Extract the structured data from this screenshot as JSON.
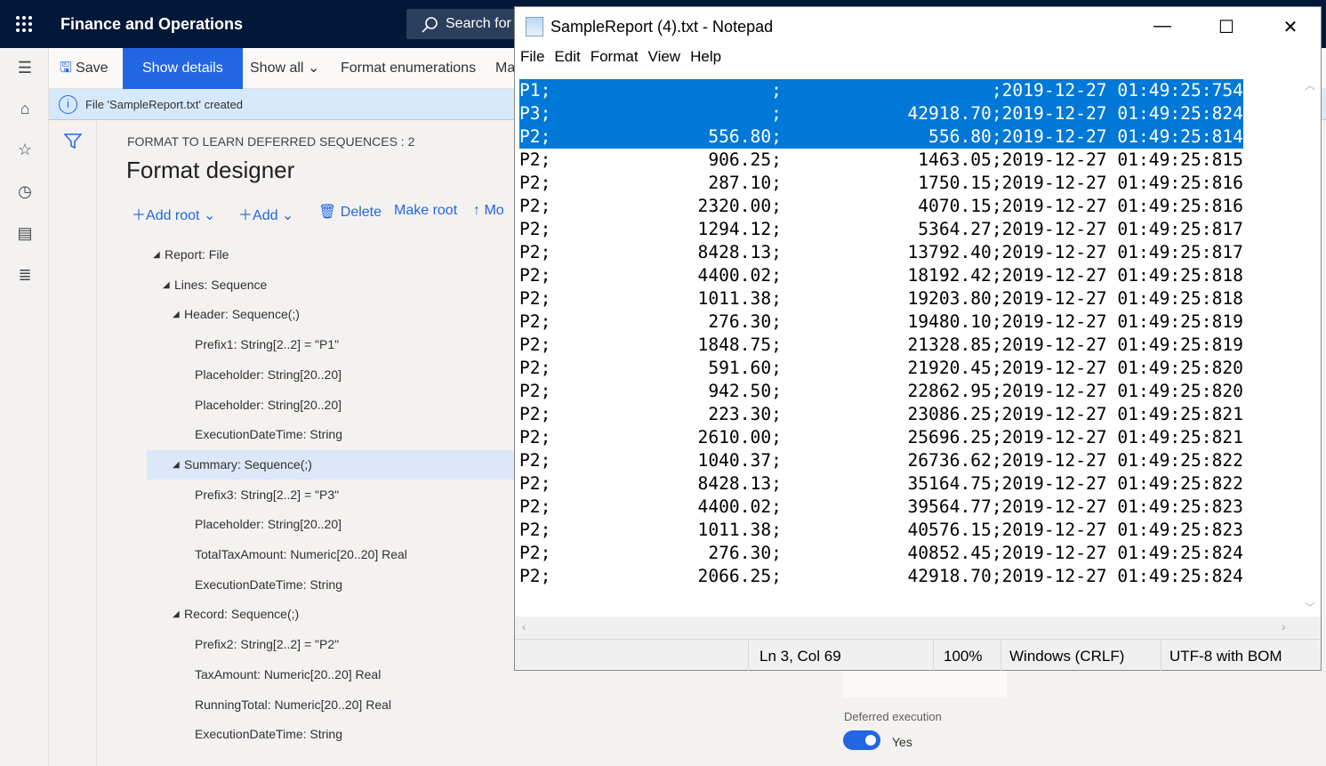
{
  "app": {
    "title": "Finance and Operations",
    "search_placeholder": "Search for"
  },
  "toolbar": {
    "save": "Save",
    "show_details": "Show details",
    "show_all": "Show all",
    "format_enumerations": "Format enumerations",
    "more": "Ma"
  },
  "info": {
    "message": "File 'SampleReport.txt' created"
  },
  "page": {
    "caption": "FORMAT TO LEARN DEFERRED SEQUENCES : 2",
    "title": "Format designer"
  },
  "actions": {
    "add_root": "Add root",
    "add": "Add",
    "delete": "Delete",
    "make_root": "Make root",
    "move": "Mo"
  },
  "tree": [
    {
      "label": "Report: File",
      "level": 0,
      "expanded": true
    },
    {
      "label": "Lines: Sequence",
      "level": 1,
      "expanded": true
    },
    {
      "label": "Header: Sequence(;)",
      "level": 2,
      "expanded": true
    },
    {
      "label": "Prefix1: String[2..2] = \"P1\"",
      "level": 3
    },
    {
      "label": "Placeholder: String[20..20]",
      "level": 3
    },
    {
      "label": "Placeholder: String[20..20]",
      "level": 3
    },
    {
      "label": "ExecutionDateTime: String",
      "level": 3
    },
    {
      "label": "Summary: Sequence(;)",
      "level": 2,
      "expanded": true,
      "selected": true
    },
    {
      "label": "Prefix3: String[2..2] = \"P3\"",
      "level": 3
    },
    {
      "label": "Placeholder: String[20..20]",
      "level": 3
    },
    {
      "label": "TotalTaxAmount: Numeric[20..20] Real",
      "level": 3
    },
    {
      "label": "ExecutionDateTime: String",
      "level": 3
    },
    {
      "label": "Record: Sequence(;)",
      "level": 2,
      "expanded": true
    },
    {
      "label": "Prefix2: String[2..2] = \"P2\"",
      "level": 3
    },
    {
      "label": "TaxAmount: Numeric[20..20] Real",
      "level": 3
    },
    {
      "label": "RunningTotal: Numeric[20..20] Real",
      "level": 3
    },
    {
      "label": "ExecutionDateTime: String",
      "level": 3
    }
  ],
  "notepad": {
    "title": "SampleReport (4).txt - Notepad",
    "menu": [
      "File",
      "Edit",
      "Format",
      "View",
      "Help"
    ],
    "selected_lines": 3,
    "rows": [
      [
        "P1",
        "",
        "",
        "2019-12-27 01:49:25:754"
      ],
      [
        "P3",
        "",
        "42918.70",
        "2019-12-27 01:49:25:824"
      ],
      [
        "P2",
        "556.80",
        "556.80",
        "2019-12-27 01:49:25:814"
      ],
      [
        "P2",
        "906.25",
        "1463.05",
        "2019-12-27 01:49:25:815"
      ],
      [
        "P2",
        "287.10",
        "1750.15",
        "2019-12-27 01:49:25:816"
      ],
      [
        "P2",
        "2320.00",
        "4070.15",
        "2019-12-27 01:49:25:816"
      ],
      [
        "P2",
        "1294.12",
        "5364.27",
        "2019-12-27 01:49:25:817"
      ],
      [
        "P2",
        "8428.13",
        "13792.40",
        "2019-12-27 01:49:25:817"
      ],
      [
        "P2",
        "4400.02",
        "18192.42",
        "2019-12-27 01:49:25:818"
      ],
      [
        "P2",
        "1011.38",
        "19203.80",
        "2019-12-27 01:49:25:818"
      ],
      [
        "P2",
        "276.30",
        "19480.10",
        "2019-12-27 01:49:25:819"
      ],
      [
        "P2",
        "1848.75",
        "21328.85",
        "2019-12-27 01:49:25:819"
      ],
      [
        "P2",
        "591.60",
        "21920.45",
        "2019-12-27 01:49:25:820"
      ],
      [
        "P2",
        "942.50",
        "22862.95",
        "2019-12-27 01:49:25:820"
      ],
      [
        "P2",
        "223.30",
        "23086.25",
        "2019-12-27 01:49:25:821"
      ],
      [
        "P2",
        "2610.00",
        "25696.25",
        "2019-12-27 01:49:25:821"
      ],
      [
        "P2",
        "1040.37",
        "26736.62",
        "2019-12-27 01:49:25:822"
      ],
      [
        "P2",
        "8428.13",
        "35164.75",
        "2019-12-27 01:49:25:822"
      ],
      [
        "P2",
        "4400.02",
        "39564.77",
        "2019-12-27 01:49:25:823"
      ],
      [
        "P2",
        "1011.38",
        "40576.15",
        "2019-12-27 01:49:25:823"
      ],
      [
        "P2",
        "276.30",
        "40852.45",
        "2019-12-27 01:49:25:824"
      ],
      [
        "P2",
        "2066.25",
        "42918.70",
        "2019-12-27 01:49:25:824"
      ]
    ],
    "status": {
      "position": "Ln 3, Col 69",
      "zoom": "100%",
      "line_endings": "Windows (CRLF)",
      "encoding": "UTF-8 with BOM"
    }
  },
  "properties": {
    "deferred_label": "Deferred execution",
    "deferred_value": "Yes",
    "deferred_on": true
  },
  "colors": {
    "accent": "#2266e3",
    "topbar": "#011838",
    "selection": "#0078d7",
    "info_bg": "#d6e9fb"
  }
}
